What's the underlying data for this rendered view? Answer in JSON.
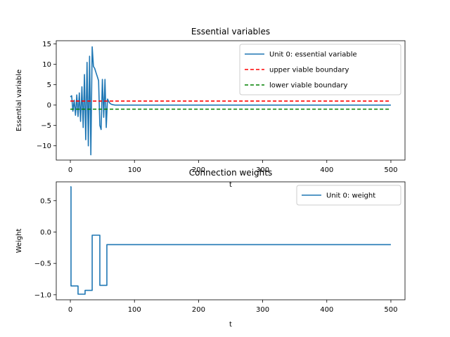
{
  "chart_data": [
    {
      "type": "line",
      "title": "Essential variables",
      "xlabel": "t",
      "ylabel": "Essential variable",
      "xlim": [
        -22,
        522
      ],
      "ylim": [
        -13.5,
        15.8
      ],
      "xticks": [
        0,
        100,
        200,
        300,
        400,
        500
      ],
      "yticks": [
        -10,
        -5,
        0,
        5,
        10,
        15
      ],
      "legend_position": "top-right",
      "grid": false,
      "series": [
        {
          "name": "Unit 0: essential variable",
          "color": "#1f77b4",
          "style": "solid",
          "x": [
            0,
            2,
            4,
            6,
            8,
            10,
            12,
            14,
            16,
            18,
            20,
            22,
            24,
            26,
            28,
            30,
            32,
            34,
            36,
            38,
            40,
            42,
            44,
            46,
            48,
            50,
            52,
            54,
            56,
            58,
            60,
            62,
            64,
            66,
            68,
            70,
            75,
            80,
            90,
            100,
            150,
            200,
            300,
            400,
            500
          ],
          "y": [
            2.0,
            2.3,
            -1.5,
            1.2,
            -2.5,
            2.5,
            -2.8,
            3.0,
            -4.0,
            4.5,
            -5.5,
            7.5,
            -8.5,
            10.5,
            -10.0,
            12.0,
            -12.2,
            14.3,
            9.5,
            9.0,
            8.0,
            7.0,
            6.0,
            -5.0,
            -6.0,
            6.3,
            -3.0,
            6.3,
            -5.5,
            1.5,
            0.8,
            0.4,
            0.2,
            0.1,
            0.05,
            0.0,
            0.0,
            0.0,
            0.0,
            0.0,
            0.0,
            0.0,
            0.0,
            0.0,
            0.0
          ]
        },
        {
          "name": "upper viable boundary",
          "color": "#ff0000",
          "style": "dashed",
          "x": [
            0,
            500
          ],
          "y": [
            1,
            1
          ]
        },
        {
          "name": "lower viable boundary",
          "color": "#008000",
          "style": "dashed",
          "x": [
            0,
            500
          ],
          "y": [
            -1,
            -1
          ]
        }
      ]
    },
    {
      "type": "line",
      "title": "Connection weights",
      "xlabel": "t",
      "ylabel": "Weight",
      "xlim": [
        -22,
        522
      ],
      "ylim": [
        -1.08,
        0.8
      ],
      "xticks": [
        0,
        100,
        200,
        300,
        400,
        500
      ],
      "yticks": [
        -1.0,
        -0.5,
        0.0,
        0.5
      ],
      "ytick_labels": [
        "−1.0",
        "−0.5",
        "0.0",
        "0.5"
      ],
      "legend_position": "top-right",
      "grid": false,
      "series": [
        {
          "name": "Unit 0: weight",
          "color": "#1f77b4",
          "style": "solid",
          "x": [
            0,
            1,
            1,
            12,
            12,
            23,
            23,
            34,
            34,
            46,
            46,
            57,
            57,
            500
          ],
          "y": [
            0.72,
            0.72,
            -0.86,
            -0.86,
            -0.99,
            -0.99,
            -0.93,
            -0.93,
            -0.05,
            -0.05,
            -0.85,
            -0.85,
            -0.2,
            -0.2
          ]
        }
      ]
    }
  ]
}
